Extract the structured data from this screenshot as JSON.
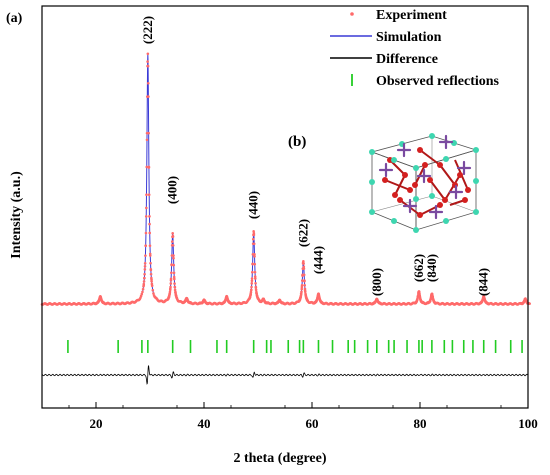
{
  "panel_labels": {
    "a": "(a)",
    "b": "(b)"
  },
  "chart_data": {
    "type": "line",
    "xlabel": "2 theta (degree)",
    "ylabel": "Intensity (a.u.)",
    "xlim": [
      10,
      100
    ],
    "x_ticks": [
      "20",
      "40",
      "60",
      "80",
      "100"
    ],
    "legend": [
      {
        "name": "Experiment",
        "color": "#ff6a6a",
        "style": "dots"
      },
      {
        "name": "Simulation",
        "color": "#3a3ad6",
        "style": "line"
      },
      {
        "name": "Difference",
        "color": "#000000",
        "style": "line"
      },
      {
        "name": "Observed reflections",
        "color": "#22cc22",
        "style": "tick"
      }
    ],
    "legend_position": "top-right",
    "peaks": [
      {
        "label": "(222)",
        "x": 29.6,
        "intensity": 100
      },
      {
        "label": "(400)",
        "x": 34.2,
        "intensity": 28
      },
      {
        "label": "(440)",
        "x": 49.2,
        "intensity": 29
      },
      {
        "label": "(622)",
        "x": 58.4,
        "intensity": 17
      },
      {
        "label": "(444)",
        "x": 61.2,
        "intensity": 4
      },
      {
        "label": "(800)",
        "x": 72.0,
        "intensity": 2
      },
      {
        "label": "(662)",
        "x": 79.8,
        "intensity": 5
      },
      {
        "label": "(840)",
        "x": 82.2,
        "intensity": 4
      },
      {
        "label": "(844)",
        "x": 91.8,
        "intensity": 3
      }
    ],
    "minor_peaks": [
      {
        "x": 20.8,
        "intensity": 3
      },
      {
        "x": 36.8,
        "intensity": 2
      },
      {
        "x": 40.0,
        "intensity": 1.5
      },
      {
        "x": 44.2,
        "intensity": 3
      },
      {
        "x": 51.0,
        "intensity": 1.5
      },
      {
        "x": 54.0,
        "intensity": 1.5
      },
      {
        "x": 99.5,
        "intensity": 2
      }
    ],
    "observed_reflections": [
      14.8,
      24.1,
      28.5,
      29.6,
      34.2,
      37.5,
      42.4,
      44.2,
      49.2,
      51.6,
      52.4,
      55.6,
      57.7,
      58.4,
      61.2,
      63.8,
      66.7,
      67.9,
      70.3,
      72.0,
      74.2,
      75.2,
      77.6,
      79.8,
      80.4,
      82.2,
      84.5,
      86.0,
      88.1,
      89.8,
      91.8,
      94.0,
      96.8,
      98.9
    ]
  }
}
